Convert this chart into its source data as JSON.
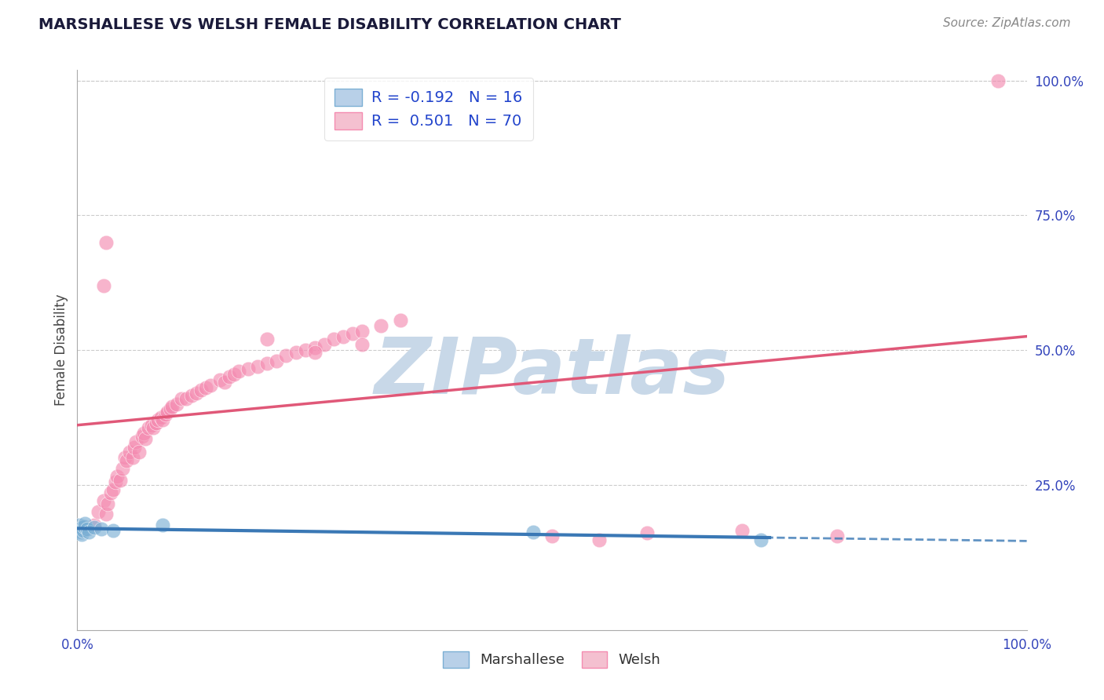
{
  "title": "MARSHALLESE VS WELSH FEMALE DISABILITY CORRELATION CHART",
  "source": "Source: ZipAtlas.com",
  "ylabel": "Female Disability",
  "marshallese_color": "#7bafd4",
  "welsh_color": "#f48cb1",
  "welsh_line_color": "#e05878",
  "marsh_line_color": "#3a78b5",
  "background_color": "#ffffff",
  "grid_color": "#cccccc",
  "watermark": "ZIPatlas",
  "watermark_color": "#c8d8e8",
  "marshallese_points": [
    [
      0.002,
      0.175
    ],
    [
      0.003,
      0.168
    ],
    [
      0.004,
      0.162
    ],
    [
      0.005,
      0.17
    ],
    [
      0.005,
      0.158
    ],
    [
      0.006,
      0.165
    ],
    [
      0.007,
      0.172
    ],
    [
      0.008,
      0.178
    ],
    [
      0.01,
      0.168
    ],
    [
      0.012,
      0.162
    ],
    [
      0.018,
      0.17
    ],
    [
      0.025,
      0.168
    ],
    [
      0.038,
      0.165
    ],
    [
      0.09,
      0.175
    ],
    [
      0.48,
      0.162
    ],
    [
      0.72,
      0.148
    ]
  ],
  "welsh_points": [
    [
      0.018,
      0.175
    ],
    [
      0.022,
      0.2
    ],
    [
      0.028,
      0.22
    ],
    [
      0.03,
      0.195
    ],
    [
      0.032,
      0.215
    ],
    [
      0.035,
      0.235
    ],
    [
      0.038,
      0.24
    ],
    [
      0.04,
      0.255
    ],
    [
      0.042,
      0.265
    ],
    [
      0.045,
      0.258
    ],
    [
      0.048,
      0.28
    ],
    [
      0.05,
      0.3
    ],
    [
      0.052,
      0.295
    ],
    [
      0.055,
      0.31
    ],
    [
      0.058,
      0.3
    ],
    [
      0.06,
      0.32
    ],
    [
      0.062,
      0.33
    ],
    [
      0.065,
      0.31
    ],
    [
      0.068,
      0.34
    ],
    [
      0.07,
      0.345
    ],
    [
      0.072,
      0.335
    ],
    [
      0.075,
      0.355
    ],
    [
      0.078,
      0.36
    ],
    [
      0.08,
      0.355
    ],
    [
      0.083,
      0.365
    ],
    [
      0.085,
      0.37
    ],
    [
      0.088,
      0.375
    ],
    [
      0.09,
      0.37
    ],
    [
      0.093,
      0.38
    ],
    [
      0.095,
      0.385
    ],
    [
      0.098,
      0.39
    ],
    [
      0.1,
      0.395
    ],
    [
      0.105,
      0.4
    ],
    [
      0.11,
      0.41
    ],
    [
      0.115,
      0.41
    ],
    [
      0.12,
      0.415
    ],
    [
      0.125,
      0.42
    ],
    [
      0.13,
      0.425
    ],
    [
      0.135,
      0.43
    ],
    [
      0.14,
      0.435
    ],
    [
      0.15,
      0.445
    ],
    [
      0.155,
      0.44
    ],
    [
      0.16,
      0.45
    ],
    [
      0.165,
      0.455
    ],
    [
      0.17,
      0.46
    ],
    [
      0.18,
      0.465
    ],
    [
      0.19,
      0.47
    ],
    [
      0.2,
      0.475
    ],
    [
      0.21,
      0.48
    ],
    [
      0.22,
      0.49
    ],
    [
      0.23,
      0.495
    ],
    [
      0.24,
      0.5
    ],
    [
      0.25,
      0.505
    ],
    [
      0.26,
      0.51
    ],
    [
      0.27,
      0.52
    ],
    [
      0.28,
      0.525
    ],
    [
      0.29,
      0.53
    ],
    [
      0.3,
      0.535
    ],
    [
      0.32,
      0.545
    ],
    [
      0.34,
      0.555
    ],
    [
      0.2,
      0.52
    ],
    [
      0.25,
      0.495
    ],
    [
      0.3,
      0.51
    ],
    [
      0.5,
      0.155
    ],
    [
      0.55,
      0.148
    ],
    [
      0.6,
      0.16
    ],
    [
      0.7,
      0.165
    ],
    [
      0.8,
      0.155
    ],
    [
      0.97,
      1.0
    ],
    [
      0.028,
      0.62
    ],
    [
      0.03,
      0.7
    ]
  ]
}
